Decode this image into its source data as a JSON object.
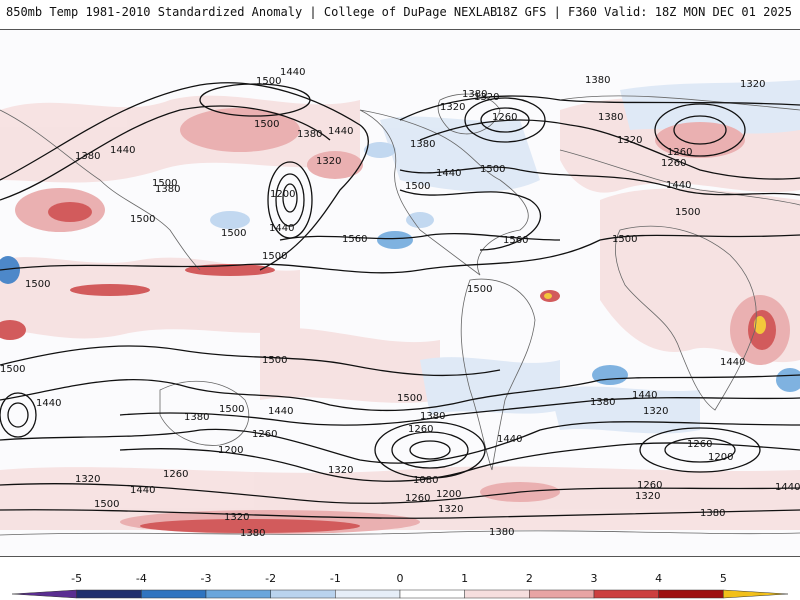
{
  "header": {
    "left_title": "850mb Temp 1981-2010 Standardized Anomaly | College of DuPage NEXLAB",
    "right_title": "18Z GFS | F360 Valid: 18Z MON DEC 01 2025"
  },
  "colorbar": {
    "ticks": [
      "-5",
      "-4",
      "-3",
      "-2",
      "-1",
      "0",
      "1",
      "2",
      "3",
      "4",
      "5"
    ],
    "colors": [
      "#5a2e91",
      "#1f2f6e",
      "#2f74c0",
      "#6aa6dc",
      "#b9d3ee",
      "#e6eef8",
      "#ffffff",
      "#f6dede",
      "#e8a4a4",
      "#cc4040",
      "#9e1010",
      "#f2c01a"
    ]
  },
  "contours": {
    "labels": [
      {
        "text": "1440"
      },
      {
        "text": "1500"
      },
      {
        "text": "1380"
      },
      {
        "text": "1320"
      },
      {
        "text": "1260"
      },
      {
        "text": "1380"
      },
      {
        "text": "1320"
      },
      {
        "text": "1440"
      },
      {
        "text": "1500"
      },
      {
        "text": "1380"
      },
      {
        "text": "1440"
      },
      {
        "text": "1380"
      },
      {
        "text": "1500"
      },
      {
        "text": "1500"
      },
      {
        "text": "1440"
      },
      {
        "text": "1260"
      },
      {
        "text": "1320"
      },
      {
        "text": "1380"
      },
      {
        "text": "1500"
      },
      {
        "text": "1500"
      },
      {
        "text": "1440"
      },
      {
        "text": "1560"
      },
      {
        "text": "1560"
      },
      {
        "text": "1500"
      },
      {
        "text": "1500"
      },
      {
        "text": "1500"
      },
      {
        "text": "1500"
      },
      {
        "text": "1500"
      },
      {
        "text": "1500"
      },
      {
        "text": "1440"
      },
      {
        "text": "1380"
      },
      {
        "text": "1500"
      },
      {
        "text": "1440"
      },
      {
        "text": "1260"
      },
      {
        "text": "1200"
      },
      {
        "text": "1320"
      },
      {
        "text": "1380"
      },
      {
        "text": "1500"
      },
      {
        "text": "1260"
      },
      {
        "text": "1080"
      },
      {
        "text": "1200"
      },
      {
        "text": "1260"
      },
      {
        "text": "1440"
      },
      {
        "text": "1320"
      },
      {
        "text": "1380"
      },
      {
        "text": "1440"
      },
      {
        "text": "1320"
      },
      {
        "text": "1260"
      },
      {
        "text": "1200"
      },
      {
        "text": "1260"
      },
      {
        "text": "1320"
      },
      {
        "text": "1440"
      },
      {
        "text": "1380"
      },
      {
        "text": "1320"
      },
      {
        "text": "1260"
      },
      {
        "text": "1440"
      },
      {
        "text": "1500"
      },
      {
        "text": "1320"
      },
      {
        "text": "1380"
      },
      {
        "text": "1380"
      },
      {
        "text": "1320"
      },
      {
        "text": "1500"
      },
      {
        "text": "1440"
      },
      {
        "text": "1260"
      },
      {
        "text": "1200"
      },
      {
        "text": "1320"
      },
      {
        "text": "1380"
      },
      {
        "text": "1440"
      },
      {
        "text": "1500"
      },
      {
        "text": "1380"
      }
    ]
  }
}
